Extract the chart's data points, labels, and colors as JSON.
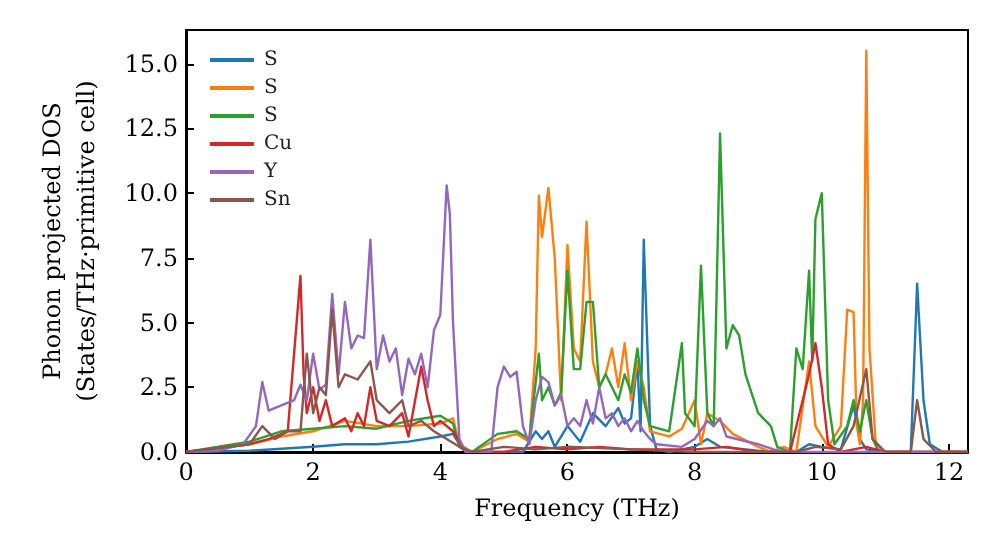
{
  "chart_data": {
    "type": "line",
    "xlabel": "Frequency (THz)",
    "ylabel": "Phonon projected DOS\n(States/THz·primitive cell)",
    "xlim": [
      0,
      12.3
    ],
    "xticks": [
      0,
      2,
      4,
      6,
      8,
      10,
      12
    ],
    "ylim": [
      0,
      16.3
    ],
    "yticks": [
      {
        "value": 0,
        "label": "0.0"
      },
      {
        "value": 2.5,
        "label": "2.5"
      },
      {
        "value": 5,
        "label": "5.0"
      },
      {
        "value": 7.5,
        "label": "7.5"
      },
      {
        "value": 10,
        "label": "10.0"
      },
      {
        "value": 12.5,
        "label": "12.5"
      },
      {
        "value": 15,
        "label": "15.0"
      }
    ],
    "grid": false,
    "legend": "top left",
    "marker": "none",
    "line_style": "solid",
    "series": [
      {
        "name": "S",
        "color": "#1f77b4",
        "x": [
          0,
          1,
          2,
          2.5,
          3,
          3.5,
          4,
          4.2,
          4.35,
          4.5,
          5.3,
          5.5,
          5.6,
          5.7,
          5.8,
          6.0,
          6.2,
          6.4,
          6.6,
          6.8,
          6.9,
          7.0,
          7.1,
          7.15,
          7.2,
          7.3,
          7.4,
          7.6,
          8.0,
          8.2,
          8.4,
          9.0,
          9.6,
          9.8,
          10.0,
          10.3,
          10.5,
          10.6,
          10.7,
          11.0,
          11.4,
          11.5,
          11.6,
          11.7,
          11.9,
          12.3
        ],
        "values": [
          0,
          0.05,
          0.2,
          0.3,
          0.3,
          0.4,
          0.6,
          0.7,
          0.1,
          0,
          0,
          0.8,
          0.5,
          0.8,
          0.2,
          1.0,
          0.4,
          1.5,
          1.0,
          1.7,
          1.1,
          1.3,
          3.5,
          0.8,
          8.2,
          1.0,
          0.1,
          0,
          0.2,
          0.5,
          0.2,
          0.05,
          0,
          0.3,
          0.2,
          0.1,
          1.8,
          0.5,
          0.1,
          0,
          0,
          6.5,
          2.0,
          0.3,
          0,
          0
        ]
      },
      {
        "name": "S",
        "color": "#ff7f0e",
        "x": [
          0,
          1,
          1.5,
          2,
          2.5,
          3,
          3.5,
          4,
          4.2,
          4.3,
          4.5,
          4.9,
          5.2,
          5.4,
          5.5,
          5.55,
          5.6,
          5.7,
          5.8,
          5.9,
          6.0,
          6.1,
          6.2,
          6.3,
          6.4,
          6.5,
          6.6,
          6.7,
          6.8,
          6.9,
          7.0,
          7.1,
          7.2,
          7.3,
          7.6,
          7.8,
          8.0,
          8.1,
          8.2,
          8.4,
          8.6,
          9.0,
          9.2,
          9.4,
          9.6,
          9.8,
          9.9,
          10.1,
          10.3,
          10.4,
          10.5,
          10.55,
          10.6,
          10.65,
          10.7,
          10.75,
          10.85,
          11.0,
          12.3
        ],
        "values": [
          0,
          0.3,
          0.6,
          0.8,
          1.2,
          1.0,
          1.0,
          1.1,
          1.3,
          0.3,
          0,
          0.5,
          0.7,
          0.4,
          4.0,
          9.9,
          8.3,
          10.2,
          7.5,
          2.0,
          8.0,
          4.0,
          3.5,
          8.9,
          3.5,
          2.5,
          3.0,
          4.0,
          2.5,
          4.2,
          2.0,
          3.5,
          2.5,
          0.8,
          0.6,
          0.9,
          2.0,
          0.3,
          1.5,
          1.2,
          0.7,
          0.2,
          0,
          0.2,
          0,
          3.5,
          1.0,
          0.2,
          1.0,
          5.5,
          5.4,
          1.0,
          0.3,
          2.0,
          15.5,
          4.0,
          0.3,
          0,
          0
        ]
      },
      {
        "name": "S",
        "color": "#2ca02c",
        "x": [
          0,
          1,
          1.5,
          2,
          2.5,
          3,
          3.5,
          4,
          4.2,
          4.3,
          4.5,
          4.9,
          5.2,
          5.4,
          5.55,
          5.6,
          5.7,
          5.8,
          5.9,
          6.0,
          6.1,
          6.2,
          6.3,
          6.4,
          6.5,
          6.6,
          6.8,
          6.9,
          7.0,
          7.1,
          7.2,
          7.3,
          7.6,
          7.8,
          7.85,
          8.0,
          8.1,
          8.2,
          8.3,
          8.4,
          8.5,
          8.6,
          8.7,
          8.8,
          9.0,
          9.2,
          9.3,
          9.5,
          9.6,
          9.7,
          9.8,
          9.85,
          9.9,
          10.0,
          10.1,
          10.2,
          10.4,
          10.5,
          10.6,
          10.7,
          10.8,
          10.9,
          11.4,
          12.3
        ],
        "values": [
          0,
          0.4,
          0.8,
          0.9,
          1.0,
          0.9,
          1.2,
          1.4,
          1.1,
          0.2,
          0,
          0.7,
          0.8,
          0.5,
          3.8,
          2.0,
          2.5,
          1.8,
          2.3,
          7.0,
          3.2,
          3.2,
          5.8,
          5.8,
          2.5,
          3.0,
          2.0,
          3.0,
          2.3,
          4.0,
          2.0,
          1.0,
          0.8,
          4.2,
          1.5,
          1.0,
          7.2,
          1.5,
          1.0,
          12.3,
          4.0,
          4.9,
          4.5,
          3.0,
          1.5,
          1.0,
          0.2,
          0,
          4.0,
          3.2,
          7.0,
          3.5,
          9.0,
          10.0,
          2.0,
          0.3,
          1.0,
          2.0,
          0.8,
          2.0,
          0.5,
          0,
          0,
          0
        ]
      },
      {
        "name": "Cu",
        "color": "#d62728",
        "x": [
          0,
          1,
          1.3,
          1.6,
          1.8,
          1.85,
          1.9,
          2.0,
          2.1,
          2.2,
          2.3,
          2.5,
          2.6,
          2.7,
          2.8,
          2.9,
          3.0,
          3.2,
          3.4,
          3.5,
          3.7,
          3.8,
          3.9,
          4.0,
          4.2,
          4.4,
          5,
          5.5,
          6,
          6.5,
          7,
          8,
          8.5,
          9,
          9.5,
          9.8,
          9.9,
          10.0,
          10.1,
          10.3,
          10.7,
          11,
          12.3
        ],
        "values": [
          0,
          0.3,
          0.5,
          0.8,
          6.8,
          3.0,
          1.5,
          2.5,
          1.2,
          2.0,
          1.0,
          1.3,
          0.8,
          1.5,
          1.0,
          2.5,
          1.2,
          1.0,
          1.5,
          0.6,
          3.3,
          2.0,
          1.0,
          1.2,
          0.8,
          0,
          0,
          0.2,
          0.1,
          0.2,
          0.1,
          0.1,
          0.2,
          0,
          0,
          3.0,
          4.2,
          2.5,
          0.3,
          0,
          0.2,
          0,
          0
        ]
      },
      {
        "name": "Y",
        "color": "#9467bd",
        "x": [
          0,
          0.5,
          0.9,
          1.1,
          1.2,
          1.3,
          1.5,
          1.7,
          1.8,
          1.9,
          2.0,
          2.1,
          2.2,
          2.3,
          2.4,
          2.5,
          2.6,
          2.7,
          2.8,
          2.9,
          3.0,
          3.1,
          3.2,
          3.3,
          3.4,
          3.5,
          3.6,
          3.7,
          3.8,
          3.9,
          4.0,
          4.1,
          4.15,
          4.2,
          4.3,
          4.4,
          4.8,
          4.9,
          5.0,
          5.1,
          5.2,
          5.3,
          5.4,
          5.5,
          5.6,
          5.7,
          5.8,
          5.9,
          6.0,
          6.1,
          6.2,
          6.3,
          6.4,
          6.5,
          6.6,
          6.7,
          6.8,
          6.9,
          7.0,
          7.1,
          7.2,
          7.3,
          7.4,
          7.8,
          8.0,
          8.2,
          8.3,
          8.4,
          8.5,
          9.0,
          9.3,
          9.6,
          12.3
        ],
        "values": [
          0,
          0.05,
          0.3,
          1.0,
          2.7,
          1.6,
          1.8,
          2.0,
          2.6,
          2.0,
          3.8,
          2.4,
          2.6,
          6.1,
          3.0,
          5.8,
          4.0,
          4.5,
          4.4,
          8.2,
          3.2,
          4.5,
          3.5,
          4.0,
          2.2,
          3.6,
          3.0,
          3.8,
          2.5,
          4.7,
          5.3,
          10.3,
          9.2,
          5.0,
          0.5,
          0,
          0,
          2.5,
          3.3,
          2.9,
          3.1,
          1.0,
          0.3,
          2.0,
          2.9,
          2.7,
          1.8,
          2.2,
          1.0,
          1.3,
          1.0,
          2.0,
          1.1,
          2.5,
          1.3,
          1.5,
          1.0,
          1.3,
          0.8,
          1.2,
          0.8,
          0.5,
          0.3,
          0.2,
          0.5,
          1.2,
          1.0,
          1.3,
          0.6,
          0.3,
          0.05,
          0,
          0
        ]
      },
      {
        "name": "Sn",
        "color": "#8c564b",
        "x": [
          0,
          1,
          1.2,
          1.4,
          1.6,
          1.8,
          1.9,
          2.0,
          2.1,
          2.2,
          2.3,
          2.4,
          2.5,
          2.7,
          2.9,
          3.0,
          3.2,
          3.4,
          3.5,
          3.7,
          3.9,
          4.1,
          4.3,
          4.5,
          5,
          5.5,
          6,
          7,
          8,
          9.6,
          9.9,
          10.3,
          10.5,
          10.7,
          10.8,
          11,
          11.4,
          11.5,
          11.6,
          11.8,
          12.3
        ],
        "values": [
          0,
          0.3,
          1.0,
          0.5,
          0.8,
          0.8,
          3.8,
          1.5,
          2.5,
          2.2,
          5.5,
          2.5,
          3.0,
          2.8,
          3.5,
          2.0,
          1.5,
          2.0,
          1.0,
          1.2,
          0.8,
          0.5,
          0.2,
          0,
          0.2,
          0.1,
          0.2,
          0.1,
          0,
          0,
          0.2,
          0.1,
          1.0,
          3.2,
          0.5,
          0,
          0,
          2.0,
          0.5,
          0,
          0
        ]
      }
    ]
  }
}
